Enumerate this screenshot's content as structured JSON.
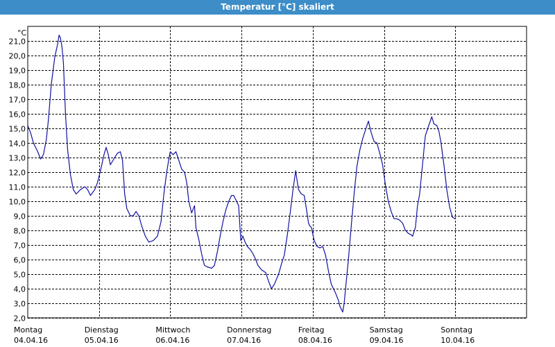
{
  "window": {
    "title": "Temperatur [°C] skaliert"
  },
  "colors": {
    "titlebar": "#3c8dc8",
    "line": "#1010a0",
    "grid": "#000000"
  },
  "chart_data": {
    "type": "line",
    "title": "Temperatur [°C] skaliert",
    "ylabel": "°C",
    "xlabel": "",
    "ylim": [
      2.0,
      22.0
    ],
    "xlim": [
      0,
      7
    ],
    "grid": true,
    "y_ticks": [
      "2,0",
      "3,0",
      "4,0",
      "5,0",
      "6,0",
      "7,0",
      "8,0",
      "9,0",
      "10,0",
      "11,0",
      "12,0",
      "13,0",
      "14,0",
      "15,0",
      "16,0",
      "17,0",
      "18,0",
      "19,0",
      "20,0",
      "21,0"
    ],
    "x_ticks": [
      {
        "day": "Montag",
        "date": "04.04.16"
      },
      {
        "day": "Dienstag",
        "date": "05.04.16"
      },
      {
        "day": "Mittwoch",
        "date": "06.04.16"
      },
      {
        "day": "Donnerstag",
        "date": "07.04.16"
      },
      {
        "day": "Freitag",
        "date": "08.04.16"
      },
      {
        "day": "Samstag",
        "date": "09.04.16"
      },
      {
        "day": "Sonntag",
        "date": "10.04.16"
      }
    ],
    "series": [
      {
        "points": [
          [
            0.0,
            15.2
          ],
          [
            0.04,
            14.7
          ],
          [
            0.08,
            14.0
          ],
          [
            0.14,
            13.4
          ],
          [
            0.18,
            12.9
          ],
          [
            0.22,
            13.2
          ],
          [
            0.26,
            14.2
          ],
          [
            0.29,
            15.6
          ],
          [
            0.33,
            18.0
          ],
          [
            0.38,
            19.9
          ],
          [
            0.42,
            20.8
          ],
          [
            0.44,
            21.4
          ],
          [
            0.46,
            21.2
          ],
          [
            0.48,
            20.6
          ],
          [
            0.5,
            19.5
          ],
          [
            0.53,
            16.0
          ],
          [
            0.56,
            13.5
          ],
          [
            0.6,
            11.8
          ],
          [
            0.64,
            10.8
          ],
          [
            0.68,
            10.5
          ],
          [
            0.74,
            10.8
          ],
          [
            0.8,
            11.0
          ],
          [
            0.84,
            10.8
          ],
          [
            0.88,
            10.4
          ],
          [
            0.94,
            10.8
          ],
          [
            0.98,
            11.3
          ],
          [
            1.03,
            12.3
          ],
          [
            1.07,
            13.2
          ],
          [
            1.1,
            13.7
          ],
          [
            1.13,
            13.2
          ],
          [
            1.16,
            12.5
          ],
          [
            1.22,
            13.0
          ],
          [
            1.26,
            13.3
          ],
          [
            1.3,
            13.4
          ],
          [
            1.33,
            12.8
          ],
          [
            1.36,
            10.5
          ],
          [
            1.39,
            9.5
          ],
          [
            1.44,
            9.0
          ],
          [
            1.48,
            9.0
          ],
          [
            1.52,
            9.3
          ],
          [
            1.56,
            9.0
          ],
          [
            1.6,
            8.3
          ],
          [
            1.65,
            7.6
          ],
          [
            1.7,
            7.2
          ],
          [
            1.76,
            7.3
          ],
          [
            1.82,
            7.6
          ],
          [
            1.87,
            8.6
          ],
          [
            1.91,
            10.5
          ],
          [
            1.95,
            12.0
          ],
          [
            1.98,
            12.9
          ],
          [
            2.0,
            13.4
          ],
          [
            2.04,
            13.2
          ],
          [
            2.08,
            13.4
          ],
          [
            2.12,
            12.8
          ],
          [
            2.16,
            12.2
          ],
          [
            2.2,
            12.0
          ],
          [
            2.23,
            11.3
          ],
          [
            2.26,
            10.0
          ],
          [
            2.3,
            9.2
          ],
          [
            2.34,
            9.7
          ],
          [
            2.36,
            8.2
          ],
          [
            2.4,
            7.4
          ],
          [
            2.44,
            6.4
          ],
          [
            2.48,
            5.6
          ],
          [
            2.52,
            5.5
          ],
          [
            2.58,
            5.4
          ],
          [
            2.62,
            5.6
          ],
          [
            2.66,
            6.5
          ],
          [
            2.7,
            7.6
          ],
          [
            2.74,
            8.6
          ],
          [
            2.78,
            9.4
          ],
          [
            2.82,
            10.0
          ],
          [
            2.86,
            10.4
          ],
          [
            2.89,
            10.4
          ],
          [
            2.92,
            10.1
          ],
          [
            2.96,
            9.7
          ],
          [
            2.99,
            7.3
          ],
          [
            3.02,
            7.6
          ],
          [
            3.05,
            7.2
          ],
          [
            3.08,
            6.9
          ],
          [
            3.12,
            6.7
          ],
          [
            3.16,
            6.4
          ],
          [
            3.2,
            6.0
          ],
          [
            3.23,
            5.6
          ],
          [
            3.28,
            5.3
          ],
          [
            3.34,
            5.1
          ],
          [
            3.38,
            4.5
          ],
          [
            3.42,
            4.0
          ],
          [
            3.46,
            4.3
          ],
          [
            3.52,
            5.0
          ],
          [
            3.56,
            5.7
          ],
          [
            3.6,
            6.3
          ],
          [
            3.64,
            7.6
          ],
          [
            3.68,
            9.1
          ],
          [
            3.72,
            10.7
          ],
          [
            3.76,
            12.1
          ],
          [
            3.78,
            11.4
          ],
          [
            3.8,
            10.8
          ],
          [
            3.84,
            10.5
          ],
          [
            3.88,
            10.4
          ],
          [
            3.91,
            9.5
          ],
          [
            3.94,
            8.5
          ],
          [
            3.96,
            8.3
          ],
          [
            3.98,
            8.2
          ],
          [
            4.02,
            7.3
          ],
          [
            4.06,
            6.9
          ],
          [
            4.1,
            6.8
          ],
          [
            4.14,
            6.9
          ],
          [
            4.18,
            6.3
          ],
          [
            4.22,
            5.2
          ],
          [
            4.26,
            4.3
          ],
          [
            4.32,
            3.7
          ],
          [
            4.36,
            3.2
          ],
          [
            4.38,
            2.8
          ],
          [
            4.42,
            2.4
          ],
          [
            4.44,
            3.0
          ],
          [
            4.46,
            4.0
          ],
          [
            4.5,
            6.0
          ],
          [
            4.54,
            8.3
          ],
          [
            4.58,
            10.5
          ],
          [
            4.62,
            12.4
          ],
          [
            4.66,
            13.5
          ],
          [
            4.7,
            14.3
          ],
          [
            4.74,
            14.9
          ],
          [
            4.78,
            15.5
          ],
          [
            4.82,
            14.7
          ],
          [
            4.86,
            14.1
          ],
          [
            4.9,
            14.0
          ],
          [
            4.94,
            13.3
          ],
          [
            4.98,
            12.5
          ],
          [
            5.02,
            11.1
          ],
          [
            5.06,
            10.0
          ],
          [
            5.1,
            9.3
          ],
          [
            5.14,
            8.8
          ],
          [
            5.18,
            8.8
          ],
          [
            5.22,
            8.7
          ],
          [
            5.26,
            8.5
          ],
          [
            5.3,
            8.0
          ],
          [
            5.34,
            7.8
          ],
          [
            5.38,
            7.7
          ],
          [
            5.4,
            7.6
          ],
          [
            5.44,
            8.2
          ],
          [
            5.47,
            9.7
          ],
          [
            5.5,
            10.5
          ],
          [
            5.54,
            12.5
          ],
          [
            5.58,
            14.5
          ],
          [
            5.62,
            15.1
          ],
          [
            5.65,
            15.5
          ],
          [
            5.67,
            15.8
          ],
          [
            5.7,
            15.3
          ],
          [
            5.74,
            15.2
          ],
          [
            5.77,
            14.8
          ],
          [
            5.8,
            14.0
          ],
          [
            5.84,
            12.5
          ],
          [
            5.88,
            10.8
          ],
          [
            5.92,
            9.6
          ],
          [
            5.96,
            8.9
          ],
          [
            6.0,
            8.8
          ]
        ]
      }
    ]
  }
}
